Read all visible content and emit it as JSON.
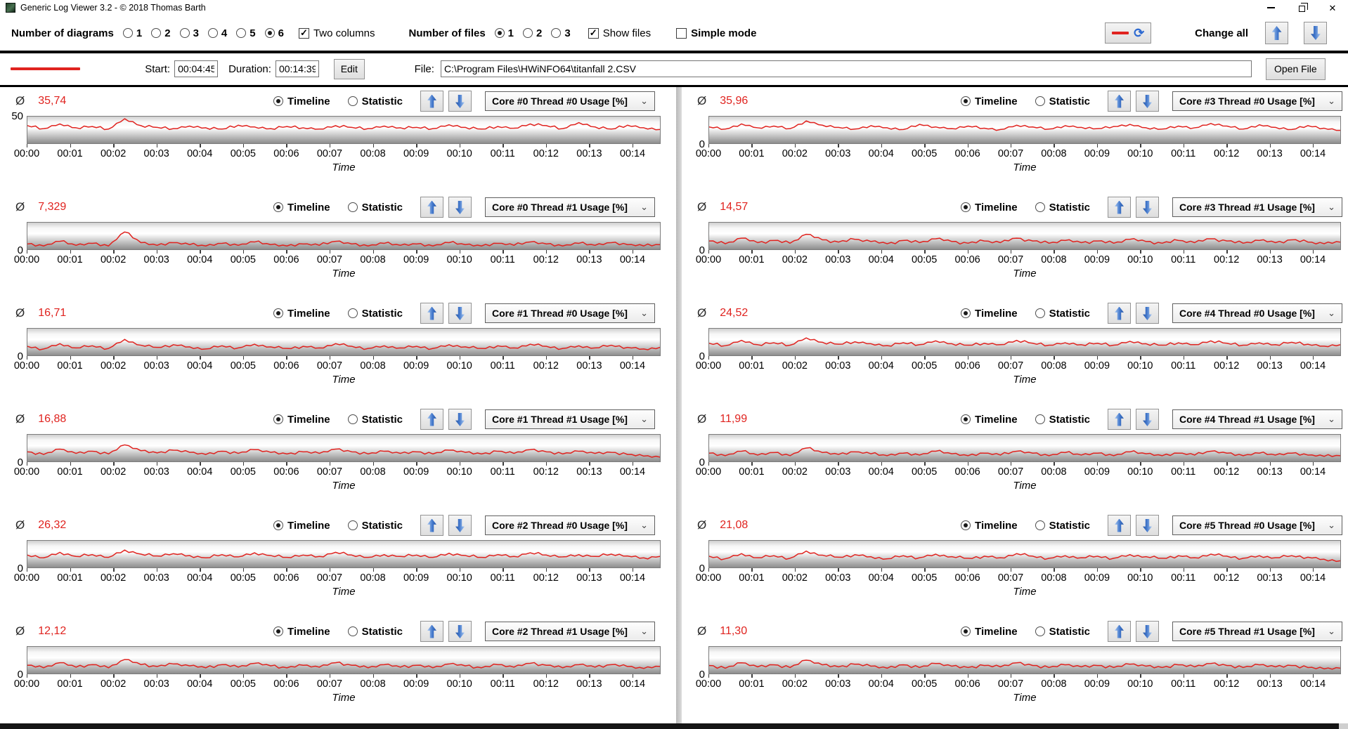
{
  "window": {
    "title": "Generic Log Viewer 3.2 - © 2018 Thomas Barth",
    "close_glyph": "✕"
  },
  "toolbar": {
    "diagrams_label": "Number of diagrams",
    "diagram_options": [
      "1",
      "2",
      "3",
      "4",
      "5",
      "6"
    ],
    "diagram_selected": "6",
    "two_columns_label": "Two columns",
    "two_columns_checked": true,
    "files_label": "Number of files",
    "file_options": [
      "1",
      "2",
      "3"
    ],
    "file_selected": "1",
    "show_files_label": "Show files",
    "show_files_checked": true,
    "simple_mode_label": "Simple mode",
    "simple_mode_checked": false,
    "change_all_label": "Change all",
    "check_glyph": "✓",
    "refresh_glyph": "⟳"
  },
  "file_row": {
    "start_label": "Start:",
    "start_value": "00:04:45",
    "duration_label": "Duration:",
    "duration_value": "00:14:39",
    "edit_label": "Edit",
    "file_label": "File:",
    "file_value": "C:\\Program Files\\HWiNFO64\\titanfall 2.CSV",
    "open_label": "Open File"
  },
  "panel_labels": {
    "avg_symbol": "Ø",
    "timeline": "Timeline",
    "statistic": "Statistic",
    "time_axis": "Time",
    "dd_chevron": "⌄"
  },
  "colors": {
    "accent_red": "#e0231f",
    "arrow_blue": "#3e74c9"
  },
  "chart_data": {
    "type": "line",
    "xlabel": "Time",
    "x_tick_labels": [
      "00:00",
      "00:01",
      "00:02",
      "00:03",
      "00:04",
      "00:05",
      "00:06",
      "00:07",
      "00:08",
      "00:09",
      "00:10",
      "00:11",
      "00:12",
      "00:13",
      "00:14"
    ],
    "x_range_seconds": 879,
    "x_tick_interval_seconds": 60,
    "grid": false,
    "legend": "none",
    "series_unit": "%",
    "charts": [
      {
        "col": "left",
        "label": "Core #0 Thread #0 Usage [%]",
        "avg": "35,74",
        "avg_num": 35.74,
        "ymax": 62,
        "ytick": {
          "label": "50",
          "position": "top"
        },
        "noise": 2.2,
        "values": [
          41,
          34,
          45,
          36,
          39,
          33,
          57,
          41,
          37,
          34,
          40,
          36,
          33,
          42,
          38,
          34,
          39,
          36,
          33,
          41,
          37,
          34,
          40,
          36,
          37,
          34,
          43,
          37,
          33,
          39,
          35,
          45,
          41,
          34,
          48,
          38,
          33,
          42,
          36,
          32
        ]
      },
      {
        "col": "left",
        "label": "Core #0 Thread #1 Usage [%]",
        "avg": "7,329",
        "avg_num": 7.329,
        "ymax": 40,
        "ytick": {
          "label": "0",
          "position": "bottom"
        },
        "noise": 1.6,
        "values": [
          8,
          5,
          12,
          6,
          9,
          5,
          26,
          10,
          6,
          10,
          7,
          5,
          9,
          6,
          11,
          7,
          5,
          8,
          6,
          12,
          8,
          5,
          9,
          6,
          8,
          5,
          10,
          7,
          5,
          9,
          6,
          11,
          8,
          5,
          9,
          6,
          10,
          7,
          5,
          7
        ]
      },
      {
        "col": "left",
        "label": "Core #1 Thread #0 Usage [%]",
        "avg": "16,71",
        "avg_num": 16.71,
        "ymax": 50,
        "ytick": {
          "label": "0",
          "position": "bottom"
        },
        "noise": 1.8,
        "values": [
          17,
          12,
          22,
          14,
          18,
          13,
          30,
          19,
          15,
          20,
          16,
          12,
          18,
          14,
          21,
          16,
          13,
          17,
          14,
          22,
          17,
          13,
          18,
          14,
          17,
          13,
          20,
          16,
          13,
          18,
          14,
          21,
          17,
          13,
          18,
          14,
          19,
          15,
          12,
          15
        ]
      },
      {
        "col": "left",
        "label": "Core #1 Thread #1 Usage [%]",
        "avg": "16,88",
        "avg_num": 16.88,
        "ymax": 50,
        "ytick": {
          "label": "0",
          "position": "bottom"
        },
        "noise": 1.8,
        "values": [
          18,
          13,
          23,
          15,
          19,
          14,
          31,
          20,
          16,
          21,
          17,
          13,
          19,
          15,
          22,
          17,
          14,
          18,
          15,
          23,
          18,
          14,
          19,
          15,
          18,
          14,
          21,
          17,
          14,
          19,
          15,
          22,
          18,
          14,
          19,
          15,
          17,
          13,
          10,
          8
        ]
      },
      {
        "col": "left",
        "label": "Core #2 Thread #0 Usage [%]",
        "avg": "26,32",
        "avg_num": 26.32,
        "ymax": 58,
        "ytick": {
          "label": "0",
          "position": "bottom"
        },
        "noise": 2.0,
        "values": [
          27,
          21,
          33,
          24,
          28,
          22,
          38,
          29,
          25,
          30,
          26,
          21,
          28,
          23,
          32,
          26,
          22,
          27,
          24,
          33,
          27,
          22,
          28,
          24,
          27,
          22,
          31,
          26,
          22,
          28,
          24,
          32,
          27,
          23,
          28,
          24,
          29,
          25,
          21,
          24
        ]
      },
      {
        "col": "left",
        "label": "Core #2 Thread #1 Usage [%]",
        "avg": "12,12",
        "avg_num": 12.12,
        "ymax": 42,
        "ytick": {
          "label": "0",
          "position": "bottom"
        },
        "noise": 1.6,
        "values": [
          13,
          9,
          17,
          10,
          14,
          9,
          22,
          14,
          11,
          15,
          12,
          9,
          14,
          10,
          16,
          12,
          9,
          13,
          10,
          17,
          13,
          9,
          14,
          10,
          13,
          9,
          15,
          12,
          9,
          14,
          10,
          16,
          13,
          9,
          14,
          10,
          14,
          11,
          8,
          11
        ]
      },
      {
        "col": "right",
        "label": "Core #3 Thread #0 Usage [%]",
        "avg": "35,96",
        "avg_num": 35.96,
        "ymax": 62,
        "ytick": {
          "label": "0",
          "position": "bottom"
        },
        "noise": 2.2,
        "values": [
          38,
          33,
          45,
          36,
          40,
          34,
          52,
          42,
          37,
          33,
          41,
          36,
          32,
          44,
          38,
          34,
          40,
          35,
          32,
          42,
          38,
          33,
          41,
          37,
          34,
          39,
          44,
          36,
          33,
          40,
          36,
          46,
          40,
          33,
          43,
          37,
          32,
          41,
          35,
          30
        ]
      },
      {
        "col": "right",
        "label": "Core #3 Thread #1 Usage [%]",
        "avg": "14,57",
        "avg_num": 14.57,
        "ymax": 48,
        "ytick": {
          "label": "0",
          "position": "bottom"
        },
        "noise": 1.8,
        "values": [
          15,
          10,
          20,
          12,
          16,
          11,
          27,
          17,
          13,
          18,
          14,
          10,
          16,
          12,
          19,
          14,
          11,
          15,
          12,
          20,
          15,
          11,
          16,
          12,
          15,
          11,
          18,
          14,
          11,
          16,
          12,
          19,
          15,
          11,
          16,
          12,
          17,
          13,
          10,
          13
        ]
      },
      {
        "col": "right",
        "label": "Core #4 Thread #0 Usage [%]",
        "avg": "24,52",
        "avg_num": 24.52,
        "ymax": 55,
        "ytick": {
          "label": "0",
          "position": "bottom"
        },
        "noise": 2.0,
        "values": [
          25,
          20,
          31,
          22,
          26,
          21,
          36,
          27,
          23,
          28,
          24,
          20,
          26,
          22,
          30,
          24,
          21,
          25,
          22,
          31,
          25,
          21,
          26,
          22,
          25,
          21,
          29,
          24,
          21,
          26,
          22,
          30,
          25,
          21,
          26,
          22,
          27,
          23,
          19,
          22
        ]
      },
      {
        "col": "right",
        "label": "Core #4 Thread #1 Usage [%]",
        "avg": "11,99",
        "avg_num": 11.99,
        "ymax": 42,
        "ytick": {
          "label": "0",
          "position": "bottom"
        },
        "noise": 1.6,
        "values": [
          13,
          9,
          16,
          10,
          14,
          9,
          21,
          14,
          11,
          15,
          12,
          9,
          13,
          10,
          16,
          12,
          9,
          13,
          10,
          16,
          13,
          9,
          14,
          10,
          13,
          9,
          15,
          12,
          9,
          13,
          10,
          16,
          13,
          9,
          13,
          10,
          13,
          10,
          8,
          9
        ]
      },
      {
        "col": "right",
        "label": "Core #5 Thread #0 Usage [%]",
        "avg": "21,08",
        "avg_num": 21.08,
        "ymax": 52,
        "ytick": {
          "label": "0",
          "position": "bottom"
        },
        "noise": 2.0,
        "values": [
          22,
          17,
          27,
          19,
          23,
          18,
          32,
          24,
          20,
          25,
          21,
          17,
          23,
          19,
          26,
          21,
          18,
          22,
          19,
          27,
          22,
          18,
          23,
          19,
          22,
          18,
          25,
          21,
          18,
          23,
          19,
          26,
          22,
          18,
          23,
          19,
          23,
          20,
          16,
          13
        ]
      },
      {
        "col": "right",
        "label": "Core #5 Thread #1 Usage [%]",
        "avg": "11,30",
        "avg_num": 11.3,
        "ymax": 40,
        "ytick": {
          "label": "0",
          "position": "bottom"
        },
        "noise": 1.6,
        "values": [
          12,
          8,
          16,
          10,
          13,
          9,
          20,
          13,
          10,
          14,
          11,
          8,
          13,
          9,
          15,
          11,
          9,
          12,
          10,
          16,
          12,
          9,
          13,
          10,
          12,
          9,
          14,
          11,
          9,
          13,
          10,
          15,
          12,
          9,
          13,
          10,
          12,
          9,
          7,
          8
        ]
      }
    ]
  }
}
